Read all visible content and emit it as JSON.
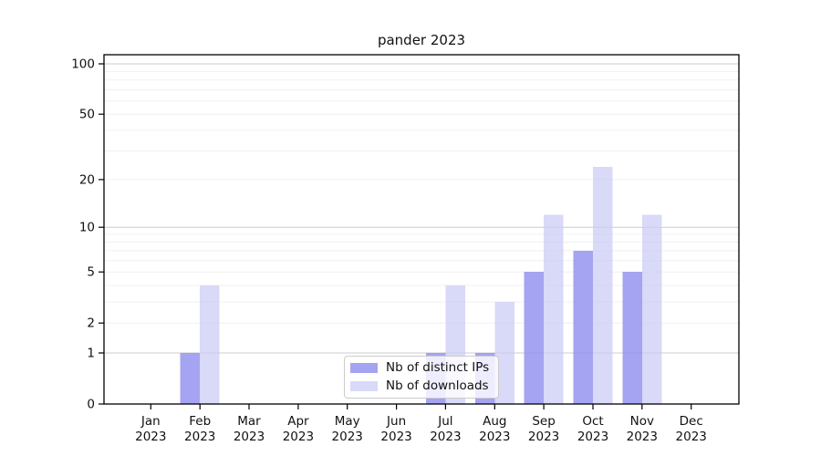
{
  "figure": {
    "title": "pander 2023"
  },
  "chart_data": {
    "type": "bar",
    "title": "pander 2023",
    "xlabel": "",
    "ylabel": "",
    "categories": [
      {
        "month": "Jan",
        "year": "2023"
      },
      {
        "month": "Feb",
        "year": "2023"
      },
      {
        "month": "Mar",
        "year": "2023"
      },
      {
        "month": "Apr",
        "year": "2023"
      },
      {
        "month": "May",
        "year": "2023"
      },
      {
        "month": "Jun",
        "year": "2023"
      },
      {
        "month": "Jul",
        "year": "2023"
      },
      {
        "month": "Aug",
        "year": "2023"
      },
      {
        "month": "Sep",
        "year": "2023"
      },
      {
        "month": "Oct",
        "year": "2023"
      },
      {
        "month": "Nov",
        "year": "2023"
      },
      {
        "month": "Dec",
        "year": "2023"
      }
    ],
    "series": [
      {
        "name": "Nb of distinct IPs",
        "color": "rgba(148,148,240,0.85)",
        "values": [
          0,
          1,
          0,
          0,
          0,
          0,
          1,
          1,
          5,
          7,
          5,
          0
        ]
      },
      {
        "name": "Nb of downloads",
        "color": "rgba(203,203,245,0.72)",
        "values": [
          0,
          4,
          0,
          0,
          0,
          0,
          4,
          3,
          12,
          24,
          12,
          0
        ]
      }
    ],
    "y_scale": "log10(1+x)",
    "y_ticks": [
      0,
      1,
      2,
      5,
      10,
      20,
      50,
      100
    ],
    "major_gridlines": [
      1,
      10,
      100
    ],
    "minor_gridlines": [
      2,
      3,
      4,
      5,
      6,
      7,
      8,
      9,
      20,
      30,
      40,
      50,
      60,
      70,
      80,
      90
    ],
    "ylim": [
      0,
      113
    ],
    "grid": true,
    "legend_position": "inside lower-center",
    "colors": {
      "axis": "#000000",
      "text": "#111111",
      "grid_minor": "#f0f0f0",
      "grid_major": "#cccccc",
      "legend_border": "#cccccc",
      "legend_bg": "rgba(255,255,255,0.8)"
    }
  }
}
